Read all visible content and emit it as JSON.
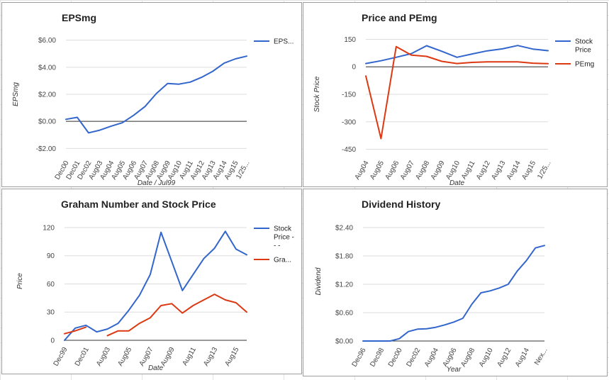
{
  "colors": {
    "blue": "#3366cc",
    "red": "#dc3912"
  },
  "chart_data": [
    {
      "id": "eps",
      "type": "line",
      "title": "EPSmg",
      "xlabel": "Date / Jul99",
      "ylabel": "EPSmg",
      "ylim": [
        -2.4,
        6.4
      ],
      "yticks": [
        -2,
        0,
        2,
        4,
        6
      ],
      "ytick_labels": [
        "-$2.00",
        "$0.00",
        "$2.00",
        "$4.00",
        "$6.00"
      ],
      "grid": true,
      "zero_line": true,
      "legend_position": "right",
      "x_tick_labels": [
        "Dec00",
        "Dec01",
        "Dec02",
        "Aug03",
        "Aug04",
        "Aug05",
        "Aug06",
        "Aug07",
        "Aug08",
        "Aug09",
        "Aug10",
        "Aug11",
        "Aug12",
        "Aug13",
        "Aug14",
        "Aug15",
        "1/25..."
      ],
      "series": [
        {
          "name": "EPS...",
          "color": "#3366cc",
          "values": [
            0.15,
            0.3,
            -0.85,
            -0.65,
            -0.35,
            -0.1,
            0.45,
            1.1,
            2.05,
            2.8,
            2.75,
            2.9,
            3.25,
            3.7,
            4.3,
            4.62,
            4.82
          ]
        }
      ]
    },
    {
      "id": "pricepe",
      "type": "line",
      "title": "Price and PEmg",
      "xlabel": "Date",
      "ylabel": "Stock Price",
      "ylim": [
        -475,
        175
      ],
      "yticks": [
        150,
        0,
        -150,
        -300,
        -450
      ],
      "ytick_labels": [
        "150",
        "0",
        "-150",
        "-300",
        "-450"
      ],
      "grid": true,
      "zero_line": true,
      "legend_position": "right",
      "x_tick_labels": [
        "Aug04",
        "Aug05",
        "Aug06",
        "Aug07",
        "Aug08",
        "Aug09",
        "Aug10",
        "Aug11",
        "Aug12",
        "Aug13",
        "Aug14",
        "Aug15",
        "1/25..."
      ],
      "series": [
        {
          "name": "Stock Price",
          "color": "#3366cc",
          "values": [
            18,
            33,
            52,
            72,
            115,
            85,
            52,
            70,
            87,
            98,
            116,
            97,
            88
          ]
        },
        {
          "name": "PEmg",
          "color": "#dc3912",
          "values": [
            -50,
            -392,
            110,
            64,
            57,
            30,
            18,
            24,
            27,
            27,
            27,
            20,
            17
          ]
        }
      ]
    },
    {
      "id": "graham",
      "type": "line",
      "title": "Graham Number and Stock Price",
      "xlabel": "Date",
      "ylabel": "Price",
      "ylim": [
        0,
        126
      ],
      "yticks": [
        0,
        30,
        60,
        90,
        120
      ],
      "ytick_labels": [
        "0",
        "30",
        "60",
        "90",
        "120"
      ],
      "grid": true,
      "zero_line": true,
      "legend_position": "right",
      "x_tick_labels": [
        "Dec99",
        "Dec01",
        "Aug03",
        "Aug05",
        "Aug07",
        "Aug09",
        "Aug11",
        "Aug13",
        "Aug15"
      ],
      "x_tick_index": [
        0,
        2,
        4,
        6,
        8,
        10,
        12,
        14,
        16
      ],
      "series": [
        {
          "name": "Stock Price - - -",
          "color": "#3366cc",
          "values": [
            0,
            13,
            16,
            9,
            12,
            18,
            32,
            48,
            70,
            115,
            84,
            53,
            70,
            87,
            98,
            116,
            97,
            91
          ]
        },
        {
          "name": "Gra...",
          "color": "#dc3912",
          "values": [
            7,
            10,
            14,
            null,
            5,
            10,
            10,
            18,
            24,
            37,
            39,
            29,
            37,
            43,
            49,
            43,
            40,
            30
          ]
        }
      ]
    },
    {
      "id": "dividend",
      "type": "line",
      "title": "Dividend History",
      "xlabel": "Year",
      "ylabel": "Dividend",
      "ylim": [
        0,
        2.52
      ],
      "yticks": [
        0,
        0.6,
        1.2,
        1.8,
        2.4
      ],
      "ytick_labels": [
        "$0.00",
        "$0.60",
        "$1.20",
        "$1.80",
        "$2.40"
      ],
      "grid": true,
      "zero_line": true,
      "legend_position": "none",
      "x_tick_labels": [
        "Dec96",
        "Dec98",
        "Dec00",
        "Dec02",
        "Aug04",
        "Aug06",
        "Aug08",
        "Aug10",
        "Aug12",
        "Aug14",
        "Nex..."
      ],
      "x_tick_index": [
        0,
        2,
        4,
        6,
        8,
        10,
        12,
        14,
        16,
        18,
        20
      ],
      "series": [
        {
          "name": "",
          "color": "#3366cc",
          "values": [
            0,
            0,
            0,
            0,
            0.05,
            0.2,
            0.25,
            0.26,
            0.29,
            0.34,
            0.4,
            0.48,
            0.78,
            1.02,
            1.06,
            1.12,
            1.2,
            1.48,
            1.7,
            1.97,
            2.02
          ]
        }
      ]
    }
  ]
}
